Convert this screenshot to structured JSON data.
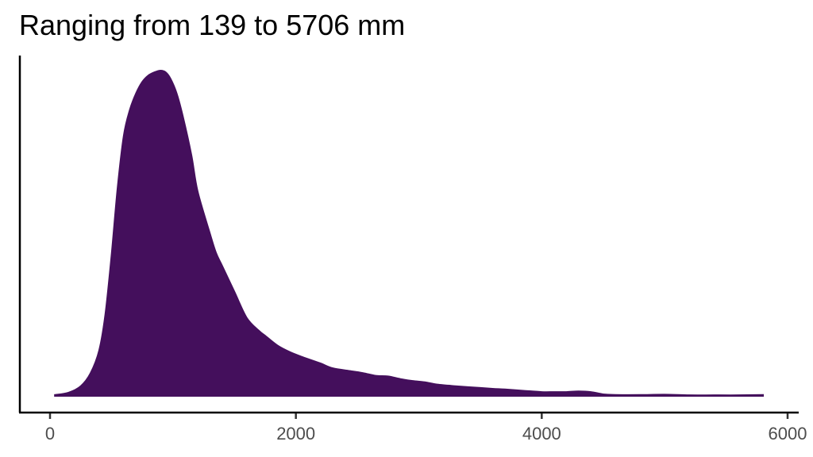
{
  "chart_data": {
    "type": "area",
    "subtype": "density",
    "title": "Ranging from 139 to 5706 mm",
    "xlabel": "",
    "ylabel": "",
    "xlim": [
      -100,
      6000
    ],
    "x_ticks": [
      0,
      2000,
      4000,
      6000
    ],
    "x_tick_labels": [
      "0",
      "2000",
      "4000",
      "6000"
    ],
    "y_ticks": [],
    "grid": false,
    "legend": null,
    "fill_color": "#440f5c",
    "series": [
      {
        "name": "density",
        "x": [
          40,
          150,
          250,
          330,
          400,
          450,
          500,
          550,
          600,
          650,
          700,
          750,
          800,
          850,
          900,
          940,
          980,
          1030,
          1080,
          1150,
          1200,
          1300,
          1350,
          1400,
          1500,
          1600,
          1700,
          1750,
          1850,
          1950,
          2050,
          2200,
          2300,
          2450,
          2550,
          2650,
          2750,
          2850,
          2950,
          3050,
          3150,
          3300,
          3450,
          3600,
          3700,
          3850,
          4000,
          4100,
          4200,
          4300,
          4400,
          4500,
          4600,
          4800,
          5000,
          5200,
          5400,
          5600,
          5800
        ],
        "density_relative": [
          0.003,
          0.01,
          0.03,
          0.07,
          0.14,
          0.25,
          0.43,
          0.64,
          0.8,
          0.88,
          0.93,
          0.965,
          0.985,
          0.995,
          1.0,
          0.995,
          0.975,
          0.93,
          0.86,
          0.74,
          0.63,
          0.5,
          0.44,
          0.4,
          0.32,
          0.24,
          0.2,
          0.185,
          0.155,
          0.135,
          0.12,
          0.1,
          0.085,
          0.076,
          0.07,
          0.062,
          0.06,
          0.052,
          0.046,
          0.042,
          0.035,
          0.03,
          0.026,
          0.022,
          0.02,
          0.016,
          0.012,
          0.012,
          0.012,
          0.014,
          0.012,
          0.005,
          0.003,
          0.003,
          0.004,
          0.002,
          0.002,
          0.002,
          0.003
        ]
      }
    ]
  }
}
